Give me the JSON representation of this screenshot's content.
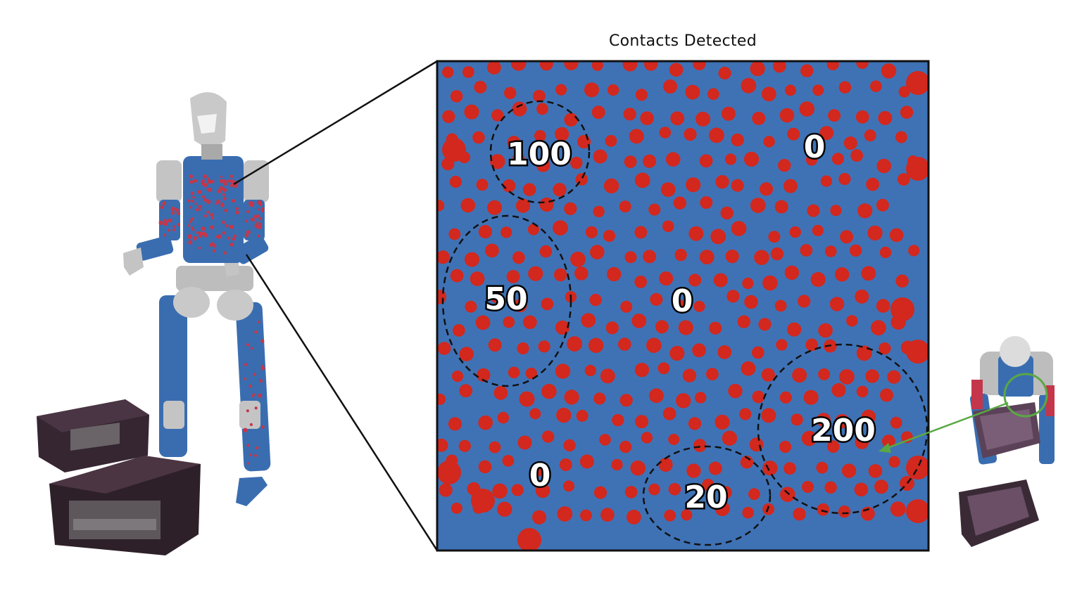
{
  "title": "Contacts Detected",
  "regions": [
    {
      "id": "upper-left",
      "label": "100",
      "circled": true
    },
    {
      "id": "upper-right",
      "label": "0",
      "circled": false
    },
    {
      "id": "left",
      "label": "50",
      "circled": true
    },
    {
      "id": "center",
      "label": "0",
      "circled": false
    },
    {
      "id": "lower-right",
      "label": "200",
      "circled": true
    },
    {
      "id": "bottom-left",
      "label": "0",
      "circled": false
    },
    {
      "id": "bottom-center",
      "label": "20",
      "circled": true
    }
  ],
  "colors": {
    "skin_background": "#3f72b5",
    "sensor_dot": "#d2281e",
    "dashed_circle": "#111111",
    "arrow": "#5aa843",
    "robot_body": "#3a6db0",
    "robot_frame": "#b9b9b9",
    "crate": "#3b2a35"
  }
}
